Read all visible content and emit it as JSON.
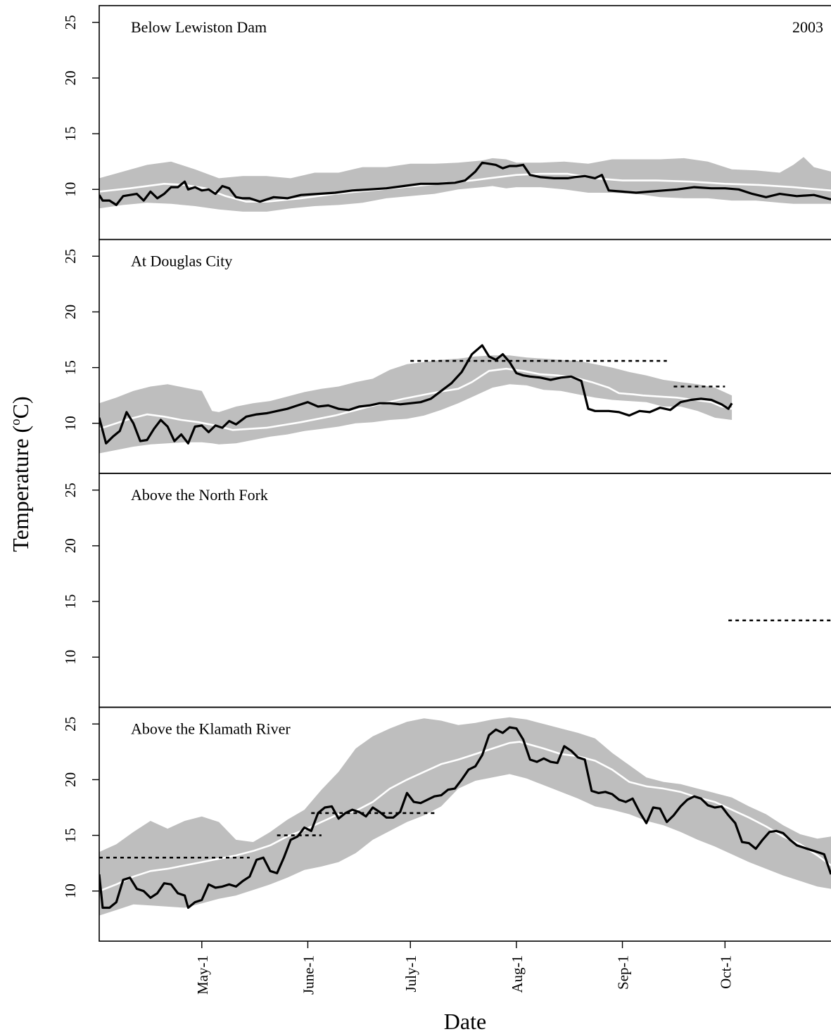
{
  "chart_data": {
    "type": "line",
    "layout": "4 vertically stacked panels sharing the x axis",
    "year": "2003",
    "xlabel": "Date",
    "ylabel_text": "Temperature (",
    "ylabel_sup": "o",
    "ylabel_end": "C)",
    "x_ticks": [
      "May-1",
      "June-1",
      "July-1",
      "Aug-1",
      "Sep-1",
      "Oct-1"
    ],
    "x_tick_days": [
      121,
      152,
      182,
      213,
      244,
      274
    ],
    "xlim": [
      91,
      305
    ],
    "ylim": [
      5.5,
      26.5
    ],
    "y_ticks": [
      10,
      15,
      20,
      25
    ],
    "colors": {
      "observed": "#000000",
      "mean": "#ffffff",
      "range_band": "#bebebe",
      "threshold": "#000000"
    },
    "legend": "none",
    "series_description": [
      "grey band: historical range",
      "white line: historical mean",
      "black line: 2003 daily mean",
      "dotted line: temperature threshold"
    ],
    "panels": [
      {
        "label": "Below Lewiston Dam",
        "band_x": [
          91,
          98,
          105,
          112,
          119,
          126,
          133,
          140,
          147,
          154,
          161,
          168,
          175,
          182,
          189,
          196,
          203,
          206,
          210,
          213,
          220,
          227,
          234,
          241,
          248,
          255,
          262,
          269,
          276,
          283,
          290,
          294,
          297,
          300,
          305
        ],
        "band_upper": [
          11,
          11.6,
          12.2,
          12.5,
          11.8,
          11,
          11.2,
          11.2,
          11,
          11.5,
          11.5,
          12,
          12,
          12.3,
          12.3,
          12.4,
          12.6,
          12.8,
          12.7,
          12.4,
          12.4,
          12.5,
          12.3,
          12.7,
          12.7,
          12.7,
          12.8,
          12.5,
          11.8,
          11.7,
          11.5,
          12.2,
          12.9,
          12,
          11.6
        ],
        "band_lower": [
          8.3,
          8.6,
          8.8,
          8.7,
          8.5,
          8.2,
          8,
          8,
          8.3,
          8.5,
          8.6,
          8.8,
          9.2,
          9.4,
          9.6,
          10,
          10.2,
          10.3,
          10.1,
          10.2,
          10.2,
          10,
          9.7,
          9.7,
          9.6,
          9.3,
          9.2,
          9.2,
          9,
          9,
          8.8,
          8.7,
          8.7,
          8.7,
          8.7
        ],
        "mean_x": [
          91,
          100,
          110,
          116,
          122,
          128,
          134,
          140,
          150,
          160,
          170,
          180,
          190,
          200,
          205,
          213,
          220,
          228,
          236,
          244,
          254,
          264,
          274,
          284,
          294,
          305
        ],
        "mean": [
          9.8,
          10.1,
          10.5,
          10.4,
          10.1,
          9.4,
          8.9,
          8.9,
          9.2,
          9.6,
          9.9,
          10.2,
          10.5,
          10.8,
          11,
          11.3,
          11.4,
          11.4,
          11,
          10.8,
          10.8,
          10.7,
          10.5,
          10.4,
          10.2,
          9.9
        ],
        "observed_x": [
          91,
          92,
          94,
          96,
          98,
          100,
          102,
          104,
          106,
          108,
          110,
          112,
          114,
          116,
          117,
          119,
          121,
          123,
          125,
          127,
          129,
          131,
          133,
          135,
          138,
          142,
          146,
          150,
          155,
          160,
          165,
          170,
          175,
          180,
          185,
          190,
          195,
          198,
          201,
          203,
          205,
          207,
          209,
          211,
          213,
          215,
          217,
          220,
          224,
          228,
          230,
          233,
          236,
          238,
          240,
          244,
          248,
          252,
          256,
          260,
          265,
          270,
          274,
          278,
          282,
          286,
          290,
          295,
          300,
          305
        ],
        "observed": [
          9.5,
          9,
          9,
          8.6,
          9.4,
          9.5,
          9.6,
          9,
          9.8,
          9.2,
          9.6,
          10.2,
          10.2,
          10.7,
          10,
          10.2,
          9.9,
          10,
          9.6,
          10.3,
          10.1,
          9.3,
          9.2,
          9.2,
          8.9,
          9.3,
          9.2,
          9.5,
          9.6,
          9.7,
          9.9,
          10,
          10.1,
          10.3,
          10.5,
          10.5,
          10.6,
          10.8,
          11.6,
          12.4,
          12.3,
          12.2,
          11.9,
          12.1,
          12.1,
          12.2,
          11.3,
          11.1,
          11,
          11,
          11.1,
          11.2,
          11,
          11.3,
          9.9,
          9.8,
          9.7,
          9.8,
          9.9,
          10,
          10.2,
          10.1,
          10.1,
          10,
          9.6,
          9.3,
          9.6,
          9.4,
          9.5,
          9.1
        ],
        "thresholds": []
      },
      {
        "label": "At Douglas City",
        "band_x": [
          91,
          96,
          101,
          106,
          111,
          116,
          121,
          124,
          126,
          131,
          136,
          141,
          146,
          151,
          156,
          161,
          166,
          171,
          176,
          181,
          186,
          191,
          196,
          201,
          206,
          211,
          216,
          221,
          226,
          231,
          236,
          241,
          246,
          251,
          256,
          261,
          266,
          271,
          276
        ],
        "band_upper": [
          11.8,
          12.3,
          12.9,
          13.3,
          13.5,
          13.2,
          12.9,
          11.1,
          11,
          11.5,
          11.8,
          12,
          12.4,
          12.8,
          13.1,
          13.3,
          13.7,
          14,
          14.8,
          15.3,
          15.5,
          15.7,
          15.8,
          16,
          16.1,
          16.1,
          15.9,
          15.8,
          15.7,
          15.6,
          15.3,
          15,
          14.6,
          14.3,
          13.9,
          13.7,
          13.5,
          13.2,
          12.5
        ],
        "band_lower": [
          7.3,
          7.6,
          7.9,
          8.1,
          8.2,
          8.3,
          8.3,
          8.2,
          8.1,
          8.2,
          8.5,
          8.8,
          9,
          9.3,
          9.5,
          9.7,
          10,
          10.1,
          10.3,
          10.4,
          10.7,
          11.2,
          11.8,
          12.5,
          13.2,
          13.5,
          13.4,
          13,
          12.9,
          12.6,
          12.3,
          12.1,
          12,
          11.9,
          11.5,
          11.5,
          11.1,
          10.5,
          10.3
        ],
        "mean_x": [
          91,
          95,
          100,
          105,
          110,
          115,
          120,
          125,
          130,
          140,
          150,
          160,
          170,
          180,
          190,
          196,
          200,
          205,
          210,
          215,
          220,
          225,
          230,
          235,
          240,
          243,
          247,
          250,
          255,
          260,
          265,
          270,
          273,
          276
        ],
        "mean": [
          9.5,
          9.9,
          10.4,
          10.8,
          10.6,
          10.3,
          10.1,
          9.8,
          9.4,
          9.6,
          10.1,
          10.7,
          11.5,
          12.2,
          12.8,
          13.1,
          13.7,
          14.7,
          14.9,
          14.7,
          14.4,
          14.3,
          14.1,
          13.7,
          13.2,
          12.7,
          12.6,
          12.5,
          12.4,
          12.3,
          12.1,
          11.9,
          11.5,
          11.3
        ],
        "observed_x": [
          91,
          93,
          95,
          97,
          99,
          101,
          103,
          105,
          107,
          109,
          111,
          113,
          115,
          117,
          119,
          121,
          123,
          125,
          127,
          129,
          131,
          134,
          137,
          140,
          143,
          146,
          149,
          152,
          155,
          158,
          161,
          164,
          167,
          170,
          173,
          176,
          179,
          182,
          185,
          188,
          191,
          194,
          197,
          200,
          203,
          205,
          207,
          209,
          211,
          213,
          215,
          217,
          220,
          223,
          226,
          229,
          232,
          234,
          236,
          238,
          240,
          243,
          246,
          249,
          252,
          255,
          258,
          261,
          264,
          267,
          270,
          273,
          275,
          276
        ],
        "observed": [
          10.5,
          8.2,
          8.8,
          9.3,
          11,
          10,
          8.4,
          8.5,
          9.5,
          10.3,
          9.7,
          8.4,
          9,
          8.2,
          9.7,
          9.8,
          9.2,
          9.8,
          9.6,
          10.2,
          9.9,
          10.6,
          10.8,
          10.9,
          11.1,
          11.3,
          11.6,
          11.9,
          11.5,
          11.6,
          11.3,
          11.2,
          11.5,
          11.6,
          11.8,
          11.8,
          11.7,
          11.8,
          11.9,
          12.2,
          12.9,
          13.6,
          14.6,
          16.2,
          17,
          16,
          15.7,
          16.2,
          15.5,
          14.5,
          14.3,
          14.2,
          14.1,
          13.9,
          14.1,
          14.2,
          13.8,
          11.3,
          11.1,
          11.1,
          11.1,
          11,
          10.7,
          11.1,
          11,
          11.4,
          11.2,
          11.9,
          12.1,
          12.2,
          12.1,
          11.7,
          11.3,
          11.8
        ],
        "thresholds": [
          {
            "x1": 182,
            "x2": 257,
            "y": 15.6
          },
          {
            "x1": 259,
            "x2": 274,
            "y": 13.3
          }
        ]
      },
      {
        "label": "Above the North Fork",
        "band_x": [],
        "band_upper": [],
        "band_lower": [],
        "mean_x": [],
        "mean": [],
        "observed_x": [],
        "observed": [],
        "thresholds": [
          {
            "x1": 275,
            "x2": 305,
            "y": 13.3
          }
        ]
      },
      {
        "label": "Above the Klamath River",
        "band_x": [
          91,
          96,
          101,
          106,
          111,
          116,
          121,
          126,
          131,
          136,
          141,
          146,
          151,
          156,
          161,
          166,
          171,
          176,
          181,
          186,
          191,
          196,
          201,
          206,
          211,
          216,
          221,
          226,
          231,
          236,
          241,
          246,
          251,
          256,
          261,
          266,
          271,
          276,
          281,
          286,
          291,
          296,
          301,
          305
        ],
        "band_upper": [
          13.5,
          14.2,
          15.3,
          16.3,
          15.6,
          16.3,
          16.7,
          16.2,
          14.6,
          14.4,
          15.3,
          16.4,
          17.3,
          19.1,
          20.7,
          22.8,
          23.9,
          24.6,
          25.2,
          25.5,
          25.3,
          24.9,
          25.1,
          25.4,
          25.6,
          25.4,
          25,
          24.6,
          24.2,
          23.7,
          22.4,
          21.3,
          20.2,
          19.8,
          19.6,
          19.2,
          18.8,
          18.4,
          17.6,
          16.9,
          15.9,
          15.1,
          14.7,
          14.9
        ],
        "band_lower": [
          7.8,
          8.3,
          8.8,
          8.7,
          8.6,
          8.5,
          8.9,
          9.3,
          9.6,
          10.1,
          10.6,
          11.2,
          11.9,
          12.2,
          12.6,
          13.4,
          14.6,
          15.4,
          16.2,
          16.8,
          17.6,
          19.2,
          19.9,
          20.2,
          20.5,
          20.1,
          19.5,
          18.9,
          18.3,
          17.6,
          17.3,
          16.9,
          16.3,
          15.9,
          15.3,
          14.6,
          14,
          13.3,
          12.6,
          12,
          11.4,
          10.9,
          10.4,
          10.2
        ],
        "mean_x": [
          91,
          96,
          101,
          106,
          111,
          116,
          121,
          126,
          131,
          136,
          141,
          146,
          151,
          156,
          161,
          166,
          171,
          176,
          181,
          186,
          191,
          196,
          201,
          206,
          211,
          214,
          221,
          226,
          231,
          236,
          241,
          246,
          251,
          256,
          261,
          266,
          271,
          276,
          281,
          286,
          291,
          296,
          301,
          305
        ],
        "mean": [
          10,
          10.6,
          11.3,
          11.8,
          12,
          12.3,
          12.6,
          12.9,
          13.2,
          13.6,
          14.1,
          14.9,
          15.5,
          16.2,
          16.9,
          17.2,
          18,
          19.2,
          20,
          20.7,
          21.4,
          21.8,
          22.3,
          22.8,
          23.3,
          23.4,
          22.8,
          22.3,
          22.1,
          21.7,
          20.9,
          19.8,
          19.4,
          19.2,
          18.9,
          18.4,
          18,
          17.3,
          16.6,
          15.8,
          14.9,
          14.2,
          13.2,
          12.3
        ],
        "observed_x": [
          91,
          92,
          94,
          96,
          98,
          100,
          102,
          104,
          106,
          108,
          110,
          112,
          114,
          116,
          117,
          119,
          121,
          123,
          125,
          127,
          129,
          131,
          133,
          135,
          137,
          139,
          141,
          143,
          145,
          147,
          149,
          151,
          153,
          155,
          157,
          159,
          161,
          163,
          165,
          167,
          169,
          171,
          173,
          175,
          177,
          179,
          181,
          183,
          185,
          187,
          189,
          191,
          193,
          195,
          197,
          199,
          201,
          203,
          205,
          207,
          209,
          211,
          213,
          215,
          217,
          219,
          221,
          223,
          225,
          227,
          229,
          231,
          233,
          235,
          237,
          239,
          241,
          243,
          245,
          247,
          249,
          251,
          253,
          255,
          257,
          259,
          261,
          263,
          265,
          267,
          269,
          271,
          273,
          275,
          277,
          279,
          281,
          283,
          285,
          287,
          289,
          291,
          293,
          295,
          297,
          299,
          301,
          303,
          305
        ],
        "observed": [
          11.5,
          8.5,
          8.5,
          9,
          11,
          11.2,
          10.2,
          10,
          9.4,
          9.8,
          10.7,
          10.6,
          9.8,
          9.6,
          8.5,
          9,
          9.2,
          10.6,
          10.3,
          10.4,
          10.6,
          10.4,
          10.9,
          11.3,
          12.8,
          13,
          11.8,
          11.6,
          13,
          14.6,
          14.9,
          15.7,
          15.4,
          17,
          17.5,
          17.6,
          16.5,
          17,
          17.3,
          17.1,
          16.7,
          17.5,
          17.1,
          16.6,
          16.6,
          17.1,
          18.8,
          18,
          17.9,
          18.2,
          18.5,
          18.6,
          19.1,
          19.2,
          20,
          20.9,
          21.2,
          22.2,
          24,
          24.5,
          24.2,
          24.7,
          24.6,
          23.6,
          21.8,
          21.6,
          21.9,
          21.6,
          21.5,
          23,
          22.6,
          22,
          21.8,
          19,
          18.8,
          18.9,
          18.7,
          18.2,
          18,
          18.3,
          17.1,
          16.1,
          17.5,
          17.4,
          16.2,
          16.8,
          17.6,
          18.2,
          18.5,
          18.3,
          17.7,
          17.5,
          17.6,
          16.8,
          16.1,
          14.4,
          14.3,
          13.8,
          14.6,
          15.3,
          15.4,
          15.2,
          14.6,
          14.1,
          13.9,
          13.7,
          13.5,
          13.3,
          11.5
        ],
        "thresholds": [
          {
            "x1": 91,
            "x2": 135,
            "y": 13
          },
          {
            "x1": 143,
            "x2": 156,
            "y": 15
          },
          {
            "x1": 153,
            "x2": 190,
            "y": 17
          }
        ]
      }
    ]
  }
}
